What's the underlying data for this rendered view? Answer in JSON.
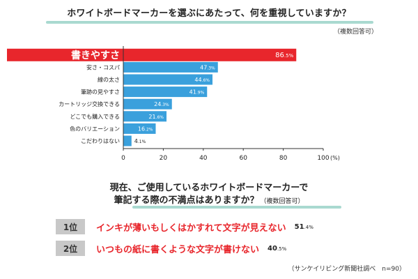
{
  "header": {
    "title": "ホワイトボードマーカーを選ぶにあたって、何を重視していますか？",
    "note": "（複数回答可）"
  },
  "chart_data": {
    "type": "bar",
    "orientation": "horizontal",
    "categories": [
      "書きやすさ",
      "安さ・コスパ",
      "線の太さ",
      "筆跡の見やすさ",
      "カートリッジ交換できる",
      "どこでも購入できる",
      "色のバリエーション",
      "こだわりはない"
    ],
    "values": [
      86.5,
      47.3,
      44.6,
      41.9,
      24.3,
      21.6,
      16.2,
      4.1
    ],
    "value_labels": [
      {
        "int": "86",
        "dec": ".5%"
      },
      {
        "int": "47",
        "dec": ".3%"
      },
      {
        "int": "44",
        "dec": ".6%"
      },
      {
        "int": "41",
        "dec": ".9%"
      },
      {
        "int": "24",
        "dec": ".3%"
      },
      {
        "int": "21",
        "dec": ".6%"
      },
      {
        "int": "16",
        "dec": ".2%"
      },
      {
        "int": "4",
        "dec": ".1%"
      }
    ],
    "xlim": [
      0,
      100
    ],
    "xticks": [
      "0",
      "20",
      "40",
      "60",
      "80",
      "100"
    ],
    "xunit": "(%)",
    "highlight_index": 0,
    "colors": {
      "bar": "#3aa0dc",
      "highlight": "#e8262c",
      "axis": "#333333"
    }
  },
  "second": {
    "title_line1": "現在、ご使用しているホワイトボードマーカーで",
    "title_line2": "筆記する際の不満点はありますか？",
    "note": "（複数回答可）",
    "ranks": [
      {
        "badge": "1位",
        "text": "インキが薄いもしくはかすれて文字が見えない",
        "int": "51",
        "dec": ".4%"
      },
      {
        "badge": "2位",
        "text": "いつもの紙に書くような文字が書けない",
        "int": "40",
        "dec": ".5%"
      }
    ]
  },
  "source": "（サンケイリビング新聞社調べ　n=90）"
}
